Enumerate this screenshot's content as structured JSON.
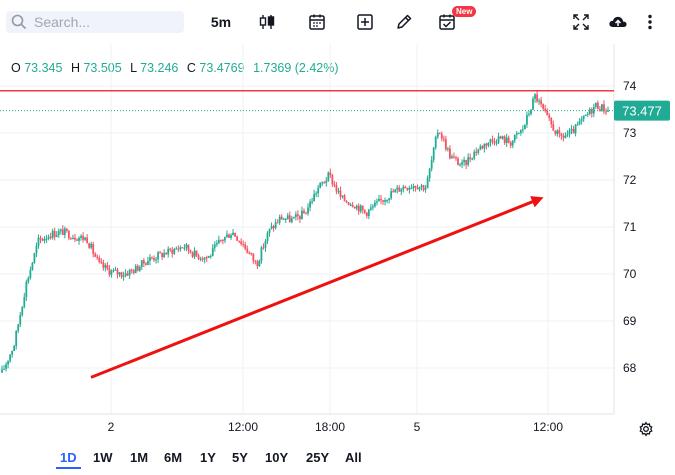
{
  "toolbar": {
    "search_placeholder": "Search...",
    "interval": "5m",
    "icons": [
      "search-icon",
      "candles-icon",
      "calendar-icon",
      "plus-square-icon",
      "pencil-icon",
      "calendar-check-icon",
      "fullscreen-icon",
      "cloud-upload-icon",
      "more-icon"
    ],
    "new_badge": "New"
  },
  "ohlc": {
    "open_label": "O",
    "open": "73.345",
    "high_label": "H",
    "high": "73.505",
    "low_label": "L",
    "low": "73.246",
    "close_label": "C",
    "close": "73.4769",
    "change": "1.7369 (2.42%)"
  },
  "chart_data": {
    "type": "candlestick",
    "x_tick_labels": [
      "2",
      "12:00",
      "18:00",
      "5",
      "12:00"
    ],
    "y_tick_labels": [
      "68",
      "69",
      "70",
      "71",
      "72",
      "73",
      "74"
    ],
    "ylim": [
      67.0,
      74.7
    ],
    "last_price": "73.477",
    "horizontal_line": 73.9,
    "trend_arrow": {
      "from": [
        1.0,
        67.8
      ],
      "to": [
        5.2,
        71.6
      ]
    },
    "close_path": [
      67.9,
      68.5,
      69.8,
      70.7,
      70.85,
      70.9,
      70.8,
      70.75,
      70.2,
      70.05,
      70.0,
      70.1,
      70.3,
      70.4,
      70.5,
      70.6,
      70.4,
      70.35,
      70.7,
      70.9,
      70.6,
      70.2,
      70.9,
      71.2,
      71.15,
      71.3,
      71.8,
      72.1,
      71.6,
      71.5,
      71.3,
      71.5,
      71.7,
      71.85,
      71.9,
      71.85,
      73.1,
      72.5,
      72.3,
      72.6,
      72.8,
      72.9,
      72.8,
      73.1,
      73.8,
      73.3,
      72.9,
      73.0,
      73.3,
      73.6,
      73.48
    ],
    "colors": {
      "up": "#22ab94",
      "down": "#f7525f",
      "hline": "#f23645",
      "arrow": "#ee1111",
      "grid": "#eef0f3"
    }
  },
  "periods": [
    "1D",
    "1W",
    "1M",
    "6M",
    "1Y",
    "5Y",
    "10Y",
    "25Y",
    "All"
  ],
  "active_period": "1D"
}
